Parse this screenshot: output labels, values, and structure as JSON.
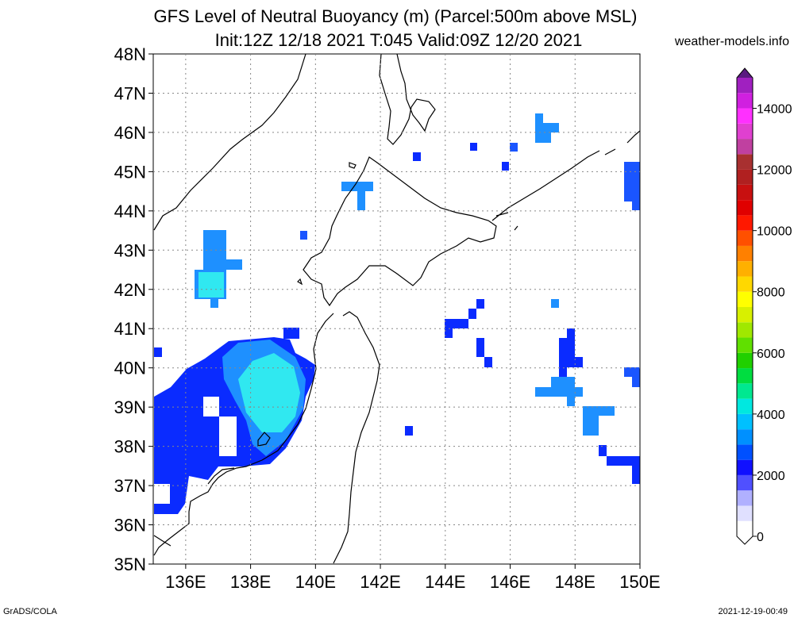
{
  "title_line1": "GFS Level of Neutral Buoyancy (m) (Parcel:500m above MSL)",
  "title_line2": "Init:12Z 12/18 2021 T:045 Valid:09Z 12/20 2021",
  "source": "weather-models.info",
  "footer_left": "GrADS/COLA",
  "footer_right": "2021-12-19-00:49",
  "map": {
    "lon_range": [
      135,
      150
    ],
    "lat_range": [
      35,
      48
    ],
    "lat_ticks": [
      "35N",
      "36N",
      "37N",
      "38N",
      "39N",
      "40N",
      "41N",
      "42N",
      "43N",
      "44N",
      "45N",
      "46N",
      "47N",
      "48N"
    ],
    "lon_ticks": [
      "136E",
      "138E",
      "140E",
      "142E",
      "144E",
      "146E",
      "148E",
      "150E"
    ]
  },
  "colorbar": {
    "labels": [
      "0",
      "2000",
      "4000",
      "6000",
      "8000",
      "10000",
      "12000",
      "14000"
    ],
    "range": [
      0,
      15000
    ]
  },
  "colors": {
    "c2": "#0a2bff",
    "c2b": "#1a55ff",
    "c3": "#1e90ff",
    "c35": "#20c0ff",
    "c4": "#30e8f0"
  }
}
